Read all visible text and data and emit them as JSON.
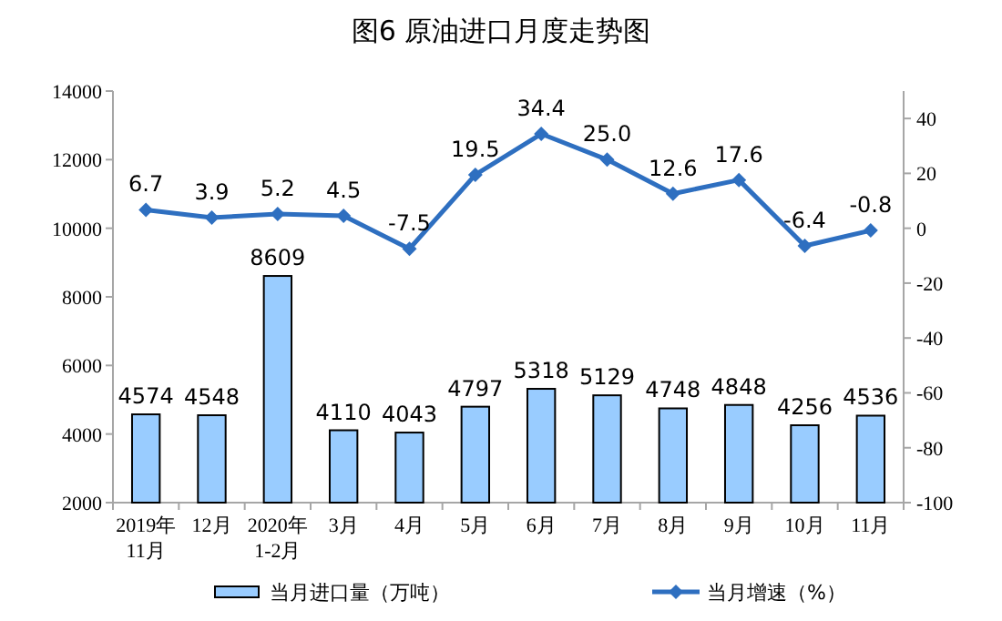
{
  "chart_data": {
    "type": "bar",
    "title": "图6  原油进口月度走势图",
    "categories": [
      "2019年\n11月",
      "12月",
      "2020年\n1-2月",
      "3月",
      "4月",
      "5月",
      "6月",
      "7月",
      "8月",
      "9月",
      "10月",
      "11月"
    ],
    "series": [
      {
        "name": "当月进口量（万吨）",
        "color": "#99ccff",
        "values": [
          4574,
          4548,
          8609,
          4110,
          4043,
          4797,
          5318,
          5129,
          4748,
          4848,
          4256,
          4536
        ]
      },
      {
        "name": "当月增速（%）",
        "type": "line",
        "axis": "y2",
        "color": "#2e6fc0",
        "marker": "diamond",
        "values": [
          6.7,
          3.9,
          5.2,
          4.5,
          -7.5,
          19.5,
          34.4,
          25.0,
          12.6,
          17.6,
          -6.4,
          -0.8
        ],
        "value_labels": [
          "6.7",
          "3.9",
          "5.2",
          "4.5",
          "-7.5",
          "19.5",
          "34.4",
          "25.0",
          "12.6",
          "17.6",
          "-6.4",
          "-0.8"
        ]
      }
    ],
    "ylim": [
      2000,
      14000
    ],
    "yticks": [
      2000,
      4000,
      6000,
      8000,
      10000,
      12000,
      14000
    ],
    "y2lim": [
      -100,
      50
    ],
    "y2ticks": [
      -100,
      -80,
      -60,
      -40,
      -20,
      0,
      20,
      40
    ],
    "data_labels": true,
    "legend": "bottom",
    "grid": false
  }
}
